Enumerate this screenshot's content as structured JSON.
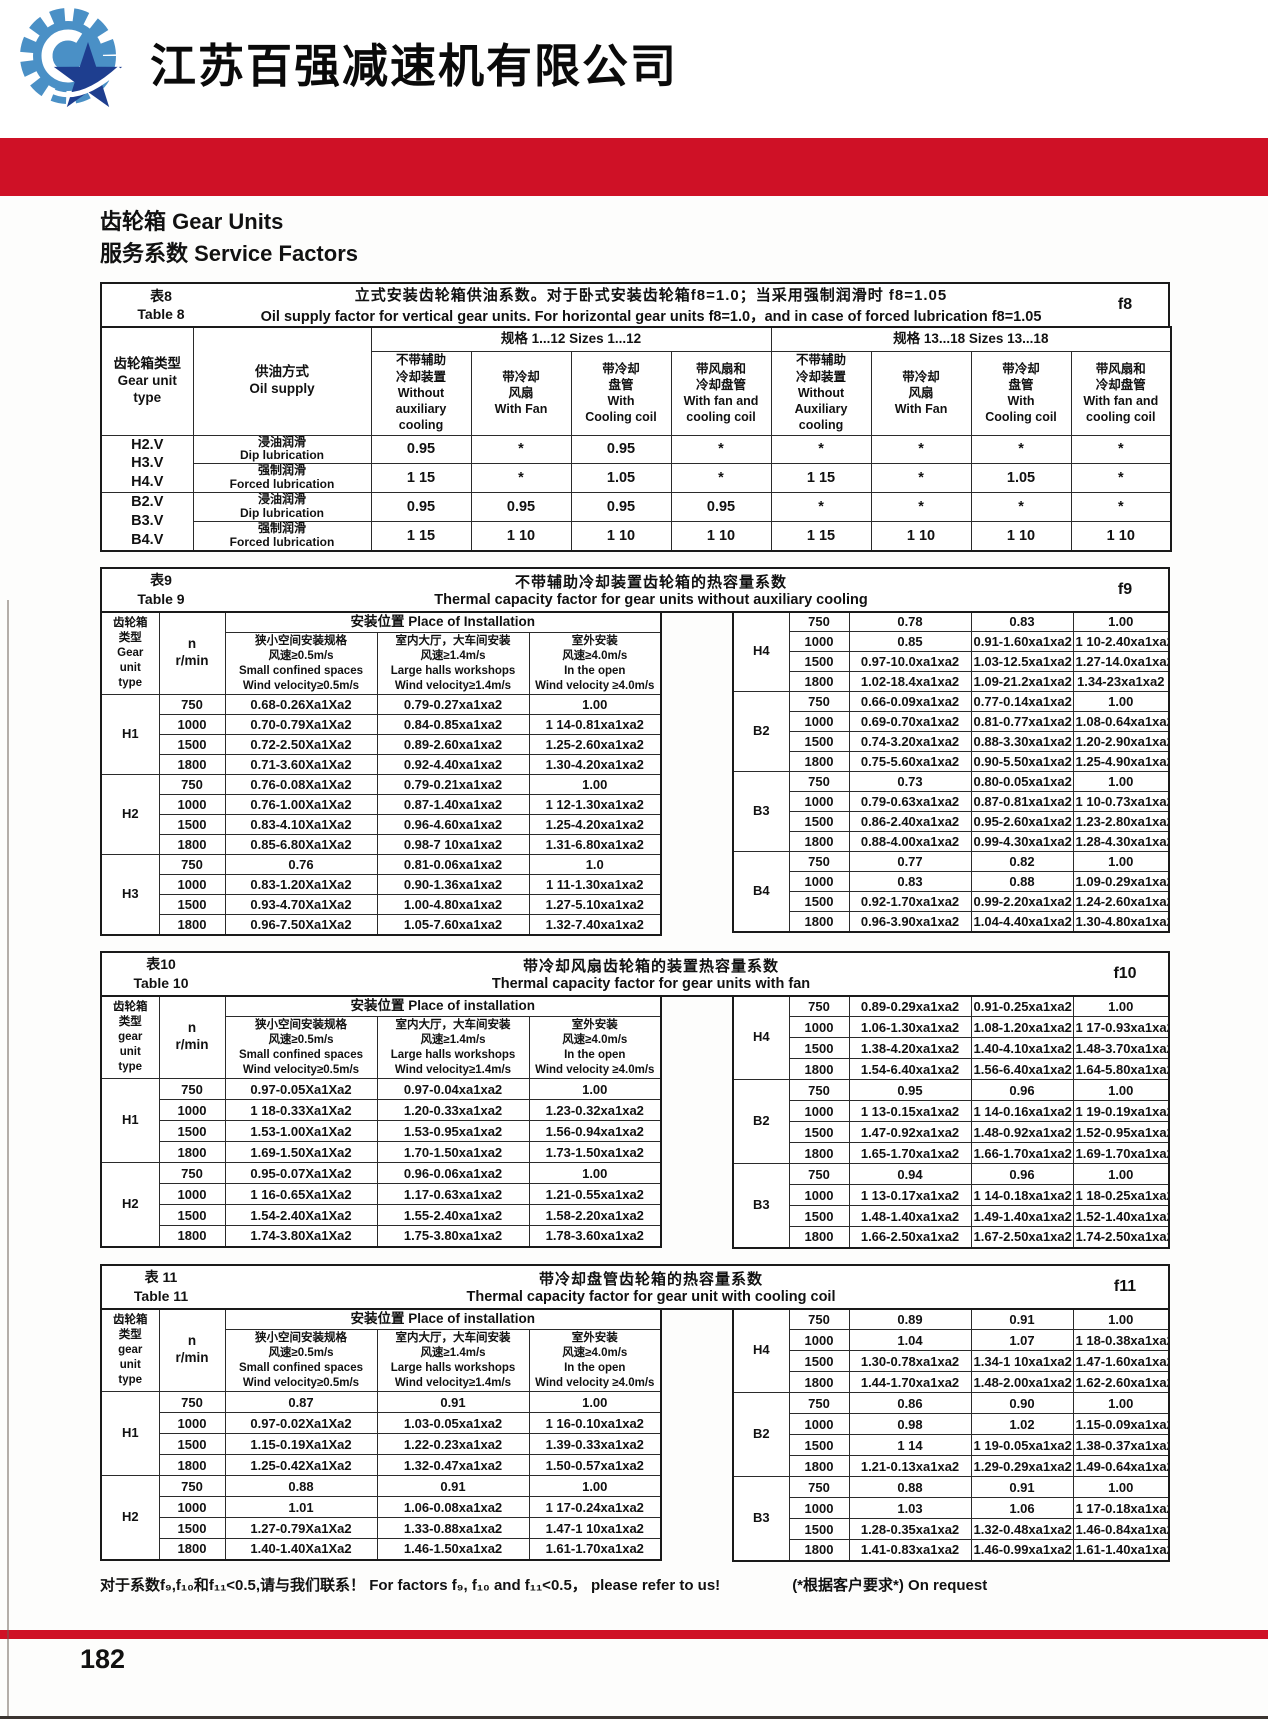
{
  "colors": {
    "accent_red": "#cf1126",
    "logo_blue": "#4a90c6",
    "logo_dark": "#1e3e8f"
  },
  "header": {
    "company_name": "江苏百强减速机有限公司"
  },
  "page": {
    "title_line1": "齿轮箱  Gear Units",
    "title_line2": "服务系数  Service Factors"
  },
  "table8": {
    "tag_cn": "表8",
    "tag_en": "Table 8",
    "factor": "f8",
    "title_cn": "立式安装齿轮箱供油系数。对于卧式安装齿轮箱f8=1.0；当采用强制润滑时  f8=1.05",
    "title_en": "Oil supply factor for vertical gear units. For horizontal gear units f8=1.0，and in case of forced lubrication f8=1.05",
    "type_header": "齿轮箱类型\nGear unit\ntype",
    "supply_header": "供油方式\nOil supply",
    "sizes_1": "规格 1...12    Sizes 1...12",
    "sizes_2": "规格 13...18    Sizes 13...18",
    "columns": [
      "不带辅助\n冷却装置\nWithout auxiliary\ncooling",
      "带冷却\n风扇\nWith Fan",
      "带冷却\n盘管\nWith\nCooling coil",
      "带风扇和\n冷却盘管\nWith fan and\ncooling coil",
      "不带辅助\n冷却装置\nWithout Auxiliary\ncooling",
      "带冷却\n风扇\nWith Fan",
      "带冷却\n盘管\nWith\nCooling coil",
      "带风扇和\n冷却盘管\nWith fan and\ncooling coil"
    ],
    "groups": [
      {
        "type": "H2.V\nH3.V\nH4.V",
        "rows": [
          [
            "浸油润滑\nDip lubrication",
            "0.95",
            "*",
            "0.95",
            "*",
            "*",
            "*",
            "*",
            "*"
          ],
          [
            "强制润滑\nForced lubrication",
            "1 15",
            "*",
            "1.05",
            "*",
            "1 15",
            "*",
            "1.05",
            "*"
          ]
        ]
      },
      {
        "type": "B2.V\nB3.V\nB4.V",
        "rows": [
          [
            "浸油润滑\nDip lubrication",
            "0.95",
            "0.95",
            "0.95",
            "0.95",
            "*",
            "*",
            "*",
            "*"
          ],
          [
            "强制润滑\nForced lubrication",
            "1 15",
            "1 10",
            "1 10",
            "1 10",
            "1 15",
            "1 10",
            "1 10",
            "1 10"
          ]
        ]
      }
    ]
  },
  "table9": {
    "tag_cn": "表9",
    "tag_en": "Table 9",
    "factor": "f9",
    "title_cn": "不带辅助冷却装置齿轮箱的热容量系数",
    "title_en": "Thermal capacity factor for gear units without auxiliary cooling",
    "type_header": "齿轮箱\n类型\nGear\nunit\ntype",
    "n_header": "n\nr/min",
    "place_header": "安装位置 Place of Installation",
    "place_cols": [
      "狭小空间安装规格\n风速≥0.5m/s\nSmall confined spaces\nWind velocity≥0.5m/s",
      "室内大厅，大车间安装\n风速≥1.4m/s\nLarge halls workshops\nWind velocity≥1.4m/s",
      "室外安装\n风速≥4.0m/s\nIn the open\nWind velocity ≥4.0m/s"
    ],
    "left_groups": [
      {
        "type": "H1",
        "rows": [
          [
            "750",
            "0.68-0.26Xa1Xa2",
            "0.79-0.27xa1xa2",
            "1.00"
          ],
          [
            "1000",
            "0.70-0.79Xa1Xa2",
            "0.84-0.85xa1xa2",
            "1 14-0.81xa1xa2"
          ],
          [
            "1500",
            "0.72-2.50Xa1Xa2",
            "0.89-2.60xa1xa2",
            "1.25-2.60xa1xa2"
          ],
          [
            "1800",
            "0.71-3.60Xa1Xa2",
            "0.92-4.40xa1xa2",
            "1.30-4.20xa1xa2"
          ]
        ]
      },
      {
        "type": "H2",
        "rows": [
          [
            "750",
            "0.76-0.08Xa1Xa2",
            "0.79-0.21xa1xa2",
            "1.00"
          ],
          [
            "1000",
            "0.76-1.00Xa1Xa2",
            "0.87-1.40xa1xa2",
            "1 12-1.30xa1xa2"
          ],
          [
            "1500",
            "0.83-4.10Xa1Xa2",
            "0.96-4.60xa1xa2",
            "1.25-4.20xa1xa2"
          ],
          [
            "1800",
            "0.85-6.80Xa1Xa2",
            "0.98-7 10xa1xa2",
            "1.31-6.80xa1xa2"
          ]
        ]
      },
      {
        "type": "H3",
        "rows": [
          [
            "750",
            "0.76",
            "0.81-0.06xa1xa2",
            "1.0"
          ],
          [
            "1000",
            "0.83-1.20Xa1Xa2",
            "0.90-1.36xa1xa2",
            "1 11-1.30xa1xa2"
          ],
          [
            "1500",
            "0.93-4.70Xa1Xa2",
            "1.00-4.80xa1xa2",
            "1.27-5.10xa1xa2"
          ],
          [
            "1800",
            "0.96-7.50Xa1Xa2",
            "1.05-7.60xa1xa2",
            "1.32-7.40xa1xa2"
          ]
        ]
      }
    ],
    "right_groups": [
      {
        "type": "H4",
        "rows": [
          [
            "750",
            "0.78",
            "0.83",
            "1.00"
          ],
          [
            "1000",
            "0.85",
            "0.91-1.60xa1xa2",
            "1 10-2.40xa1xa2"
          ],
          [
            "1500",
            "0.97-10.0xa1xa2",
            "1.03-12.5xa1xa2",
            "1.27-14.0xa1xa2"
          ],
          [
            "1800",
            "1.02-18.4xa1xa2",
            "1.09-21.2xa1xa2",
            "1.34-23xa1xa2"
          ]
        ]
      },
      {
        "type": "B2",
        "rows": [
          [
            "750",
            "0.66-0.09xa1xa2",
            "0.77-0.14xa1xa2",
            "1.00"
          ],
          [
            "1000",
            "0.69-0.70xa1xa2",
            "0.81-0.77xa1xa2",
            "1.08-0.64xa1xa2"
          ],
          [
            "1500",
            "0.74-3.20xa1xa2",
            "0.88-3.30xa1xa2",
            "1.20-2.90xa1xa2"
          ],
          [
            "1800",
            "0.75-5.60xa1xa2",
            "0.90-5.50xa1xa2",
            "1.25-4.90xa1xa2"
          ]
        ]
      },
      {
        "type": "B3",
        "rows": [
          [
            "750",
            "0.73",
            "0.80-0.05xa1xa2",
            "1.00"
          ],
          [
            "1000",
            "0.79-0.63xa1xa2",
            "0.87-0.81xa1xa2",
            "1 10-0.73xa1xa2"
          ],
          [
            "1500",
            "0.86-2.40xa1xa2",
            "0.95-2.60xa1xa2",
            "1.23-2.80xa1xa2"
          ],
          [
            "1800",
            "0.88-4.00xa1xa2",
            "0.99-4.30xa1xa2",
            "1.28-4.30xa1xa2"
          ]
        ]
      },
      {
        "type": "B4",
        "rows": [
          [
            "750",
            "0.77",
            "0.82",
            "1.00"
          ],
          [
            "1000",
            "0.83",
            "0.88",
            "1.09-0.29xa1xa2"
          ],
          [
            "1500",
            "0.92-1.70xa1xa2",
            "0.99-2.20xa1xa2",
            "1.24-2.60xa1xa2"
          ],
          [
            "1800",
            "0.96-3.90xa1xa2",
            "1.04-4.40xa1xa2",
            "1.30-4.80xa1xa2"
          ]
        ]
      }
    ]
  },
  "table10": {
    "tag_cn": "表10",
    "tag_en": "Table 10",
    "factor": "f10",
    "title_cn": "带冷却风扇齿轮箱的装置热容量系数",
    "title_en": "Thermal capacity factor for gear units with fan",
    "type_header": "齿轮箱\n类型\ngear\nunit\ntype",
    "n_header": "n\nr/min",
    "place_header": "安装位置 Place of installation",
    "place_cols": [
      "狭小空间安装规格\n风速≥0.5m/s\nSmall confined spaces\nWind velocity≥0.5m/s",
      "室内大厅，大车间安装\n风速≥1.4m/s\nLarge halls workshops\nWind velocity≥1.4m/s",
      "室外安装\n风速≥4.0m/s\nIn the open\nWind velocity ≥4.0m/s"
    ],
    "left_groups": [
      {
        "type": "H1",
        "rows": [
          [
            "750",
            "0.97-0.05Xa1Xa2",
            "0.97-0.04xa1xa2",
            "1.00"
          ],
          [
            "1000",
            "1 18-0.33Xa1Xa2",
            "1.20-0.33xa1xa2",
            "1.23-0.32xa1xa2"
          ],
          [
            "1500",
            "1.53-1.00Xa1Xa2",
            "1.53-0.95xa1xa2",
            "1.56-0.94xa1xa2"
          ],
          [
            "1800",
            "1.69-1.50Xa1Xa2",
            "1.70-1.50xa1xa2",
            "1.73-1.50xa1xa2"
          ]
        ]
      },
      {
        "type": "H2",
        "rows": [
          [
            "750",
            "0.95-0.07Xa1Xa2",
            "0.96-0.06xa1xa2",
            "1.00"
          ],
          [
            "1000",
            "1 16-0.65Xa1Xa2",
            "1.17-0.63xa1xa2",
            "1.21-0.55xa1xa2"
          ],
          [
            "1500",
            "1.54-2.40Xa1Xa2",
            "1.55-2.40xa1xa2",
            "1.58-2.20xa1xa2"
          ],
          [
            "1800",
            "1.74-3.80Xa1Xa2",
            "1.75-3.80xa1xa2",
            "1.78-3.60xa1xa2"
          ]
        ]
      }
    ],
    "right_groups": [
      {
        "type": "H4",
        "rows": [
          [
            "750",
            "0.89-0.29xa1xa2",
            "0.91-0.25xa1xa2",
            "1.00"
          ],
          [
            "1000",
            "1.06-1.30xa1xa2",
            "1.08-1.20xa1xa2",
            "1 17-0.93xa1xa2"
          ],
          [
            "1500",
            "1.38-4.20xa1xa2",
            "1.40-4.10xa1xa2",
            "1.48-3.70xa1xa2"
          ],
          [
            "1800",
            "1.54-6.40xa1xa2",
            "1.56-6.40xa1xa2",
            "1.64-5.80xa1xa2"
          ]
        ]
      },
      {
        "type": "B2",
        "rows": [
          [
            "750",
            "0.95",
            "0.96",
            "1.00"
          ],
          [
            "1000",
            "1 13-0.15xa1xa2",
            "1 14-0.16xa1xa2",
            "1 19-0.19xa1xa2"
          ],
          [
            "1500",
            "1.47-0.92xa1xa2",
            "1.48-0.92xa1xa2",
            "1.52-0.95xa1xa2"
          ],
          [
            "1800",
            "1.65-1.70xa1xa2",
            "1.66-1.70xa1xa2",
            "1.69-1.70xa1xa2"
          ]
        ]
      },
      {
        "type": "B3",
        "rows": [
          [
            "750",
            "0.94",
            "0.96",
            "1.00"
          ],
          [
            "1000",
            "1 13-0.17xa1xa2",
            "1 14-0.18xa1xa2",
            "1 18-0.25xa1xa2"
          ],
          [
            "1500",
            "1.48-1.40xa1xa2",
            "1.49-1.40xa1xa2",
            "1.52-1.40xa1xa2"
          ],
          [
            "1800",
            "1.66-2.50xa1xa2",
            "1.67-2.50xa1xa2",
            "1.74-2.50xa1xa2"
          ]
        ]
      }
    ]
  },
  "table11": {
    "tag_cn": "表 11",
    "tag_en": "Table 11",
    "factor": "f11",
    "title_cn": "带冷却盘管齿轮箱的热容量系数",
    "title_en": "Thermal capacity factor for gear unit with cooling coil",
    "type_header": "齿轮箱\n类型\ngear\nunit\ntype",
    "n_header": "n\nr/min",
    "place_header": "安装位置 Place of installation",
    "place_cols": [
      "狭小空间安装规格\n风速≥0.5m/s\nSmall confined spaces\nWind velocity≥0.5m/s",
      "室内大厅，大车间安装\n风速≥1.4m/s\nLarge halls workshops\nWind velocity≥1.4m/s",
      "室外安装\n风速≥4.0m/s\nIn the open\nWind velocity ≥4.0m/s"
    ],
    "left_groups": [
      {
        "type": "H1",
        "rows": [
          [
            "750",
            "0.87",
            "0.91",
            "1.00"
          ],
          [
            "1000",
            "0.97-0.02Xa1Xa2",
            "1.03-0.05xa1xa2",
            "1 16-0.10xa1xa2"
          ],
          [
            "1500",
            "1.15-0.19Xa1Xa2",
            "1.22-0.23xa1xa2",
            "1.39-0.33xa1xa2"
          ],
          [
            "1800",
            "1.25-0.42Xa1Xa2",
            "1.32-0.47xa1xa2",
            "1.50-0.57xa1xa2"
          ]
        ]
      },
      {
        "type": "H2",
        "rows": [
          [
            "750",
            "0.88",
            "0.91",
            "1.00"
          ],
          [
            "1000",
            "1.01",
            "1.06-0.08xa1xa2",
            "1 17-0.24xa1xa2"
          ],
          [
            "1500",
            "1.27-0.79Xa1Xa2",
            "1.33-0.88xa1xa2",
            "1.47-1 10xa1xa2"
          ],
          [
            "1800",
            "1.40-1.40Xa1Xa2",
            "1.46-1.50xa1xa2",
            "1.61-1.70xa1xa2"
          ]
        ]
      }
    ],
    "right_groups": [
      {
        "type": "H4",
        "rows": [
          [
            "750",
            "0.89",
            "0.91",
            "1.00"
          ],
          [
            "1000",
            "1.04",
            "1.07",
            "1 18-0.38xa1xa2"
          ],
          [
            "1500",
            "1.30-0.78xa1xa2",
            "1.34-1 10xa1xa2",
            "1.47-1.60xa1xa2"
          ],
          [
            "1800",
            "1.44-1.70xa1xa2",
            "1.48-2.00xa1xa2",
            "1.62-2.60xa1xa2"
          ]
        ]
      },
      {
        "type": "B2",
        "rows": [
          [
            "750",
            "0.86",
            "0.90",
            "1.00"
          ],
          [
            "1000",
            "0.98",
            "1.02",
            "1.15-0.09xa1xa2"
          ],
          [
            "1500",
            "1 14",
            "1 19-0.05xa1xa2",
            "1.38-0.37xa1xa2"
          ],
          [
            "1800",
            "1.21-0.13xa1xa2",
            "1.29-0.29xa1xa2",
            "1.49-0.64xa1xa2"
          ]
        ]
      },
      {
        "type": "B3",
        "rows": [
          [
            "750",
            "0.88",
            "0.91",
            "1.00"
          ],
          [
            "1000",
            "1.03",
            "1.06",
            "1 17-0.18xa1xa2"
          ],
          [
            "1500",
            "1.28-0.35xa1xa2",
            "1.32-0.48xa1xa2",
            "1.46-0.84xa1xa2"
          ],
          [
            "1800",
            "1.41-0.83xa1xa2",
            "1.46-0.99xa1xa2",
            "1.61-1.40xa1xa2"
          ]
        ]
      }
    ]
  },
  "footer": {
    "note": "对于系数f₉,f₁₀和f₁₁<0.5,请与我们联系！ For factors f₉,  f₁₀ and f₁₁<0.5，  please refer to us!",
    "on_request": "(*根据客户要求*) On request",
    "page_number": "182"
  }
}
